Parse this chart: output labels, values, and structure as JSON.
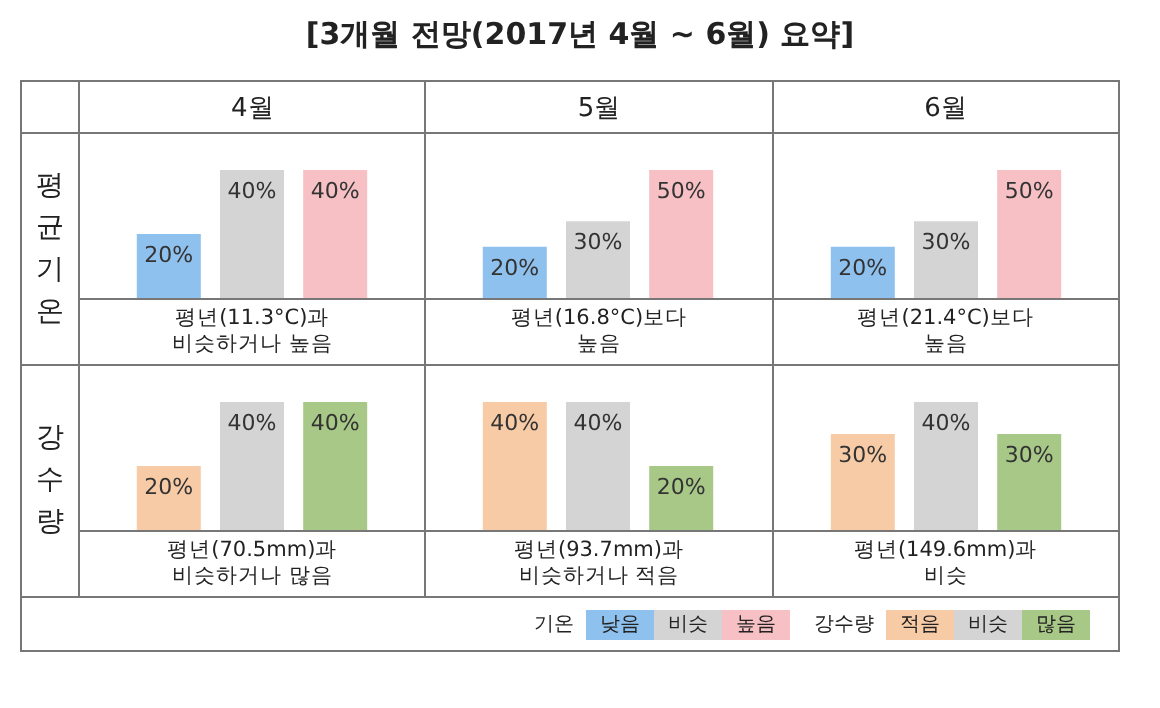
{
  "chart_data": [
    {
      "type": "bar",
      "title": "[3개월 전망(2017년 4월 ~ 6월) 요약]",
      "subtitle": "4월",
      "ylabel": "평균기온",
      "xlabel": "평년(11.3°C)과\n비슷하거나 높음",
      "categories": [
        null
      ],
      "series": [
        {
          "color": "#8fc1ee",
          "values": [
            20
          ],
          "value_labels": [
            "20%"
          ]
        },
        {
          "color": "#d4d4d4",
          "values": [
            40
          ],
          "value_labels": [
            "40%"
          ]
        },
        {
          "color": "#f6c0c4",
          "values": [
            40
          ],
          "value_labels": [
            "40%"
          ]
        }
      ]
    },
    {
      "type": "bar",
      "subtitle": "5월",
      "xlabel": "평년(16.8°C)보다\n높음",
      "categories": [
        null
      ],
      "series": [
        {
          "color": "#8fc1ee",
          "values": [
            20
          ],
          "value_labels": [
            "20%"
          ]
        },
        {
          "color": "#d4d4d4",
          "values": [
            30
          ],
          "value_labels": [
            "30%"
          ]
        },
        {
          "color": "#f6c0c4",
          "values": [
            50
          ],
          "value_labels": [
            "50%"
          ]
        }
      ]
    },
    {
      "type": "bar",
      "subtitle": "6월",
      "xlabel": "평년(21.4°C)보다\n높음",
      "categories": [
        null
      ],
      "legend": "bottom",
      "legend_title": "기온",
      "series": [
        {
          "name": "낮음",
          "color": "#8fc1ee",
          "values": [
            20
          ],
          "value_labels": [
            "20%"
          ]
        },
        {
          "name": "비슷",
          "color": "#d4d4d4",
          "values": [
            30
          ],
          "value_labels": [
            "30%"
          ]
        },
        {
          "name": "높음",
          "color": "#f6c0c4",
          "values": [
            50
          ],
          "value_labels": [
            "50%"
          ]
        }
      ]
    },
    {
      "type": "bar",
      "ylabel": "강수량",
      "xlabel": "평년(70.5mm)과\n비슷하거나 많음",
      "categories": [
        null
      ],
      "series": [
        {
          "color": "#f8cba7",
          "values": [
            20
          ],
          "value_labels": [
            "20%"
          ]
        },
        {
          "color": "#d4d4d4",
          "values": [
            40
          ],
          "value_labels": [
            "40%"
          ]
        },
        {
          "color": "#a8c888",
          "values": [
            40
          ],
          "value_labels": [
            "40%"
          ]
        }
      ]
    },
    {
      "type": "bar",
      "xlabel": "평년(93.7mm)과\n비슷하거나 적음",
      "categories": [
        null
      ],
      "series": [
        {
          "color": "#f8cba7",
          "values": [
            40
          ],
          "value_labels": [
            "40%"
          ]
        },
        {
          "color": "#d4d4d4",
          "values": [
            40
          ],
          "value_labels": [
            "40%"
          ]
        },
        {
          "color": "#a8c888",
          "values": [
            20
          ],
          "value_labels": [
            "20%"
          ]
        }
      ]
    },
    {
      "type": "bar",
      "xlabel": "평년(149.6mm)과\n비슷",
      "categories": [
        null
      ],
      "legend": "bottom",
      "legend_title": "강수량",
      "series": [
        {
          "name": "적음",
          "color": "#f8cba7",
          "values": [
            30
          ],
          "value_labels": [
            "30%"
          ]
        },
        {
          "name": "비슷",
          "color": "#d4d4d4",
          "values": [
            40
          ],
          "value_labels": [
            "40%"
          ]
        },
        {
          "name": "많음",
          "color": "#a8c888",
          "values": [
            30
          ],
          "value_labels": [
            "30%"
          ]
        }
      ]
    }
  ]
}
